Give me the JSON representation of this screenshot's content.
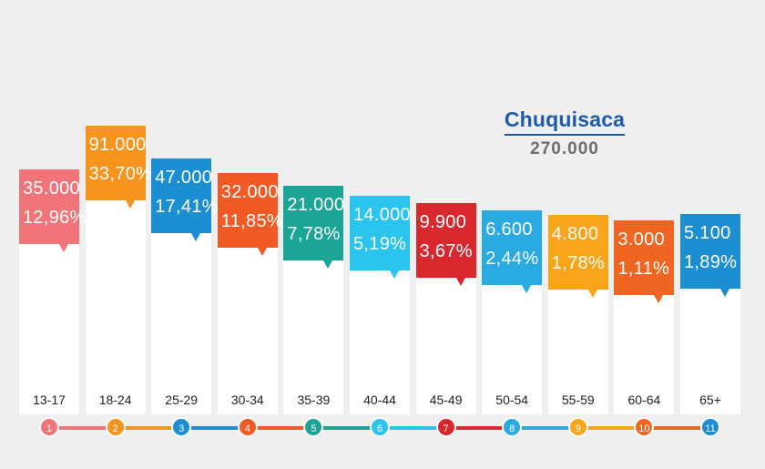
{
  "chart_data": {
    "type": "bar",
    "title": "Chuquisaca",
    "subtitle": "270.000",
    "categories": [
      "13-17",
      "18-24",
      "25-29",
      "30-34",
      "35-39",
      "40-44",
      "45-49",
      "50-54",
      "55-59",
      "60-64",
      "65+"
    ],
    "values": [
      35000,
      91000,
      47000,
      32000,
      21000,
      14000,
      9900,
      6600,
      4800,
      3000,
      5100
    ],
    "value_labels": [
      "35.000",
      "91.000",
      "47.000",
      "32.000",
      "21.000",
      "14.000",
      "9.900",
      "6.600",
      "4.800",
      "3.000",
      "5.100"
    ],
    "percent_labels": [
      "12,96%",
      "33,70%",
      "17,41%",
      "11,85%",
      "7,78%",
      "5,19%",
      "3,67%",
      "2,44%",
      "1,78%",
      "1,11%",
      "1,89%"
    ],
    "step_numbers": [
      "1",
      "2",
      "3",
      "4",
      "5",
      "6",
      "7",
      "8",
      "9",
      "10",
      "11"
    ],
    "colors": [
      "#f07478",
      "#f7941d",
      "#1b8fd2",
      "#f15a24",
      "#1aa597",
      "#29c5ee",
      "#d9272e",
      "#29abe2",
      "#f9a51b",
      "#f16522",
      "#1b8fd2"
    ],
    "grid": false,
    "legend": "none"
  }
}
